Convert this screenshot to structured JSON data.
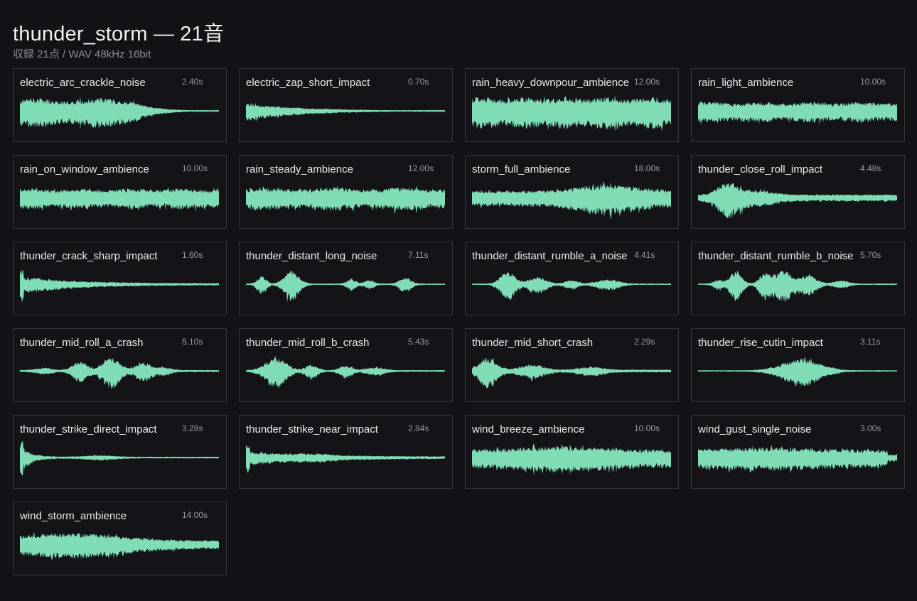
{
  "header": {
    "title": "thunder_storm — 21音",
    "subtitle": "収録 21点 / WAV 48kHz 16bit"
  },
  "colors": {
    "background": "#131217",
    "card_border": "#36353b",
    "waveform": "#7fdcb5"
  },
  "sounds": [
    {
      "name": "electric_arc_crackle_noise",
      "duration": "2.40s",
      "env": "arc"
    },
    {
      "name": "electric_zap_short_impact",
      "duration": "0.70s",
      "env": "zap"
    },
    {
      "name": "rain_heavy_downpour_ambience",
      "duration": "12.00s",
      "env": "flat_loud"
    },
    {
      "name": "rain_light_ambience",
      "duration": "10.00s",
      "env": "flat_mid"
    },
    {
      "name": "rain_on_window_ambience",
      "duration": "10.00s",
      "env": "flat_mid"
    },
    {
      "name": "rain_steady_ambience",
      "duration": "12.00s",
      "env": "flat_mid2"
    },
    {
      "name": "storm_full_ambience",
      "duration": "18.00s",
      "env": "storm"
    },
    {
      "name": "thunder_close_roll_impact",
      "duration": "4.48s",
      "env": "close_roll"
    },
    {
      "name": "thunder_crack_sharp_impact",
      "duration": "1.60s",
      "env": "crack"
    },
    {
      "name": "thunder_distant_long_noise",
      "duration": "7.11s",
      "env": "distant_long"
    },
    {
      "name": "thunder_distant_rumble_a_noise",
      "duration": "4.41s",
      "env": "rumble_a"
    },
    {
      "name": "thunder_distant_rumble_b_noise",
      "duration": "5.70s",
      "env": "rumble_b"
    },
    {
      "name": "thunder_mid_roll_a_crash",
      "duration": "5.10s",
      "env": "mid_roll_a"
    },
    {
      "name": "thunder_mid_roll_b_crash",
      "duration": "5.43s",
      "env": "mid_roll_b"
    },
    {
      "name": "thunder_mid_short_crash",
      "duration": "2.29s",
      "env": "mid_short"
    },
    {
      "name": "thunder_rise_cutin_impact",
      "duration": "3.11s",
      "env": "rise"
    },
    {
      "name": "thunder_strike_direct_impact",
      "duration": "3.28s",
      "env": "strike_direct"
    },
    {
      "name": "thunder_strike_near_impact",
      "duration": "2.84s",
      "env": "strike_near"
    },
    {
      "name": "wind_breeze_ambience",
      "duration": "10.00s",
      "env": "breeze"
    },
    {
      "name": "wind_gust_single_noise",
      "duration": "3.00s",
      "env": "gust"
    },
    {
      "name": "wind_storm_ambience",
      "duration": "14.00s",
      "env": "wind_storm"
    }
  ]
}
